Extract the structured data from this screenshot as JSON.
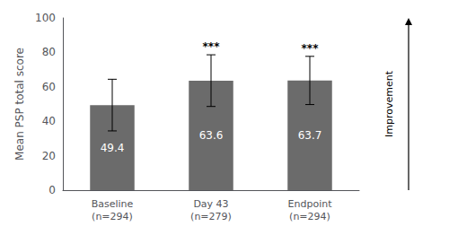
{
  "chart_data": {
    "type": "bar",
    "categories": [
      "Baseline\n(n=294)",
      "Day 43\n(n=279)",
      "Endpoint\n(n=294)"
    ],
    "values": [
      49.4,
      63.6,
      63.7
    ],
    "errors": [
      15.0,
      15.0,
      14.0
    ],
    "color": "#6b6b6b",
    "ylabel": "Mean PSP total score",
    "ylim": [
      0,
      100
    ],
    "yticks": [
      0,
      20,
      40,
      60,
      80,
      100
    ],
    "grid": false,
    "data_labels": true,
    "annotations": [
      {
        "x": "Day 43\n(n=279)",
        "text": "***"
      },
      {
        "x": "Endpoint\n(n=294)",
        "text": "***"
      },
      {
        "text": "Improvement"
      }
    ]
  }
}
